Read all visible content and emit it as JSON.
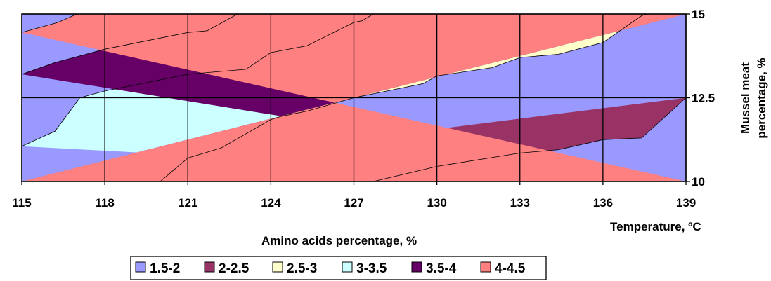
{
  "chart_data": {
    "type": "contour",
    "x_ticks": [
      "115",
      "118",
      "121",
      "124",
      "127",
      "130",
      "133",
      "136",
      "139"
    ],
    "y_ticks": [
      "10",
      "12.5",
      "15"
    ],
    "xlim": [
      115,
      139
    ],
    "ylim": [
      10,
      15
    ],
    "xlabel": "Temperature, ºC",
    "zlabel": "Amino acids percentage, %",
    "ylabel_line1": "Mussel meat",
    "ylabel_line2": "percentage, %",
    "grid": true,
    "legend_position": "bottom",
    "legend": [
      {
        "label": "1.5-2",
        "color": "#9999ff"
      },
      {
        "label": "2-2.5",
        "color": "#993366"
      },
      {
        "label": "2.5-3",
        "color": "#ffffcc"
      },
      {
        "label": "3-3.5",
        "color": "#ccffff"
      },
      {
        "label": "3.5-4",
        "color": "#660066"
      },
      {
        "label": "4-4.5",
        "color": "#ff8080"
      }
    ],
    "boundaries": [
      {
        "name": "1.5-2 | 2-2.5",
        "points": [
          [
            127.7,
            10
          ],
          [
            130,
            10.45
          ],
          [
            133,
            10.85
          ],
          [
            134.4,
            10.95
          ],
          [
            136,
            11.25
          ],
          [
            137.4,
            11.3
          ],
          [
            139,
            12.5
          ]
        ]
      },
      {
        "name": "2-2.5 | 2.5-3",
        "points": [
          [
            120,
            10
          ],
          [
            121,
            10.7
          ],
          [
            122.2,
            11
          ],
          [
            124,
            11.85
          ],
          [
            124.4,
            11.95
          ],
          [
            125.3,
            12.1
          ],
          [
            127,
            12.5
          ],
          [
            128.2,
            12.7
          ],
          [
            129.5,
            12.92
          ],
          [
            130,
            13.15
          ],
          [
            132,
            13.4
          ],
          [
            133,
            13.7
          ],
          [
            134.4,
            13.8
          ],
          [
            136,
            14.15
          ],
          [
            137.4,
            14.95
          ],
          [
            137.6,
            15
          ]
        ]
      },
      {
        "name": "2.5-3 | 3-3.5",
        "points": [
          [
            115,
            11.05
          ],
          [
            116.2,
            11.5
          ],
          [
            117.1,
            12.5
          ],
          [
            118,
            12.7
          ],
          [
            121,
            13.2
          ],
          [
            123.1,
            13.35
          ],
          [
            124,
            13.85
          ],
          [
            125.3,
            14.05
          ],
          [
            127,
            14.75
          ],
          [
            127.3,
            14.8
          ],
          [
            127.7,
            15
          ]
        ]
      },
      {
        "name": "3-3.5 | 3.5-4",
        "points": [
          [
            115,
            13.2
          ],
          [
            116.2,
            13.55
          ],
          [
            118,
            13.95
          ],
          [
            121,
            14.45
          ],
          [
            121.7,
            14.5
          ],
          [
            122.8,
            15
          ]
        ]
      },
      {
        "name": "3.5-4 | 4-4.5",
        "points": [
          [
            115,
            14.45
          ],
          [
            116.3,
            14.75
          ],
          [
            117,
            15
          ]
        ]
      }
    ]
  }
}
